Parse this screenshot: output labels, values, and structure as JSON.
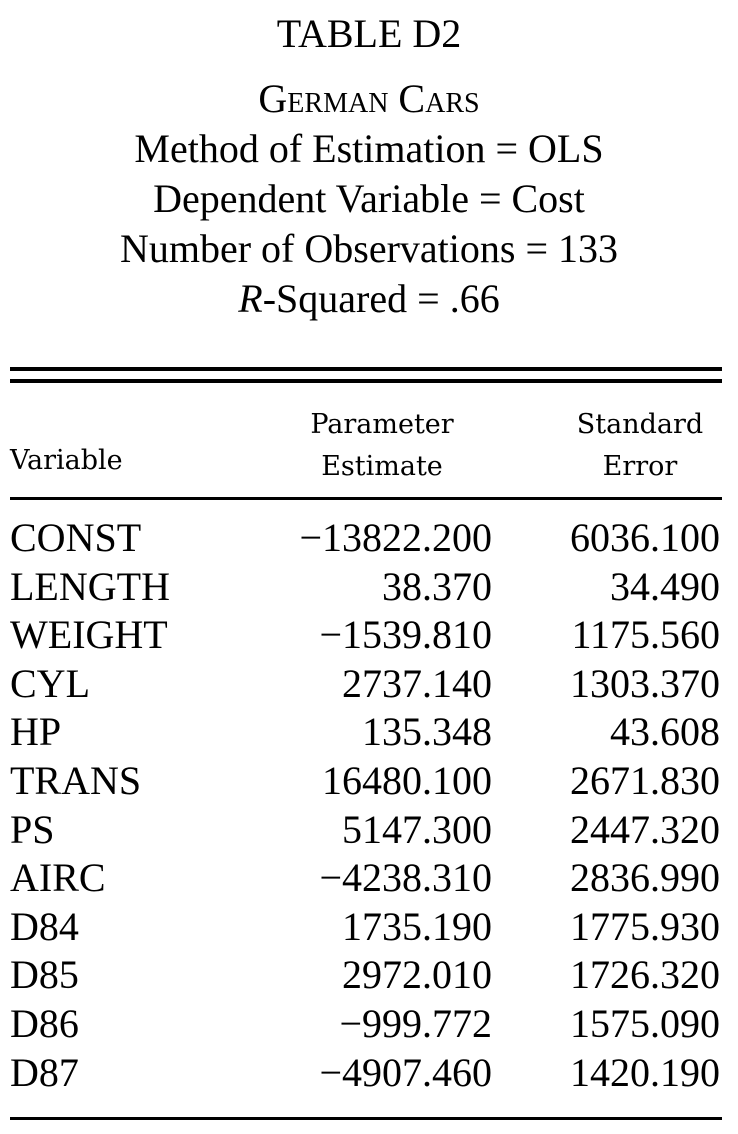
{
  "header": {
    "table_title": "TABLE D2",
    "subtitle": "German Cars",
    "method_line": "Method of Estimation = OLS",
    "dependent_line": "Dependent Variable = Cost",
    "observations_line": "Number of Observations = 133",
    "r_squared_italic": "R",
    "r_squared_rest": "-Squared = .66"
  },
  "columns": {
    "variable": "Variable",
    "estimate_line1": "Parameter",
    "estimate_line2": "Estimate",
    "error_line1": "Standard",
    "error_line2": "Error"
  },
  "rows": [
    {
      "variable": "CONST",
      "estimate": "−13822.200",
      "error": "6036.100"
    },
    {
      "variable": "LENGTH",
      "estimate": "38.370",
      "error": "34.490"
    },
    {
      "variable": "WEIGHT",
      "estimate": "−1539.810",
      "error": "1175.560"
    },
    {
      "variable": "CYL",
      "estimate": "2737.140",
      "error": "1303.370"
    },
    {
      "variable": "HP",
      "estimate": "135.348",
      "error": "43.608"
    },
    {
      "variable": "TRANS",
      "estimate": "16480.100",
      "error": "2671.830"
    },
    {
      "variable": "PS",
      "estimate": "5147.300",
      "error": "2447.320"
    },
    {
      "variable": "AIRC",
      "estimate": "−4238.310",
      "error": "2836.990"
    },
    {
      "variable": "D84",
      "estimate": "1735.190",
      "error": "1775.930"
    },
    {
      "variable": "D85",
      "estimate": "2972.010",
      "error": "1726.320"
    },
    {
      "variable": "D86",
      "estimate": "−999.772",
      "error": "1575.090"
    },
    {
      "variable": "D87",
      "estimate": "−4907.460",
      "error": "1420.190"
    }
  ]
}
